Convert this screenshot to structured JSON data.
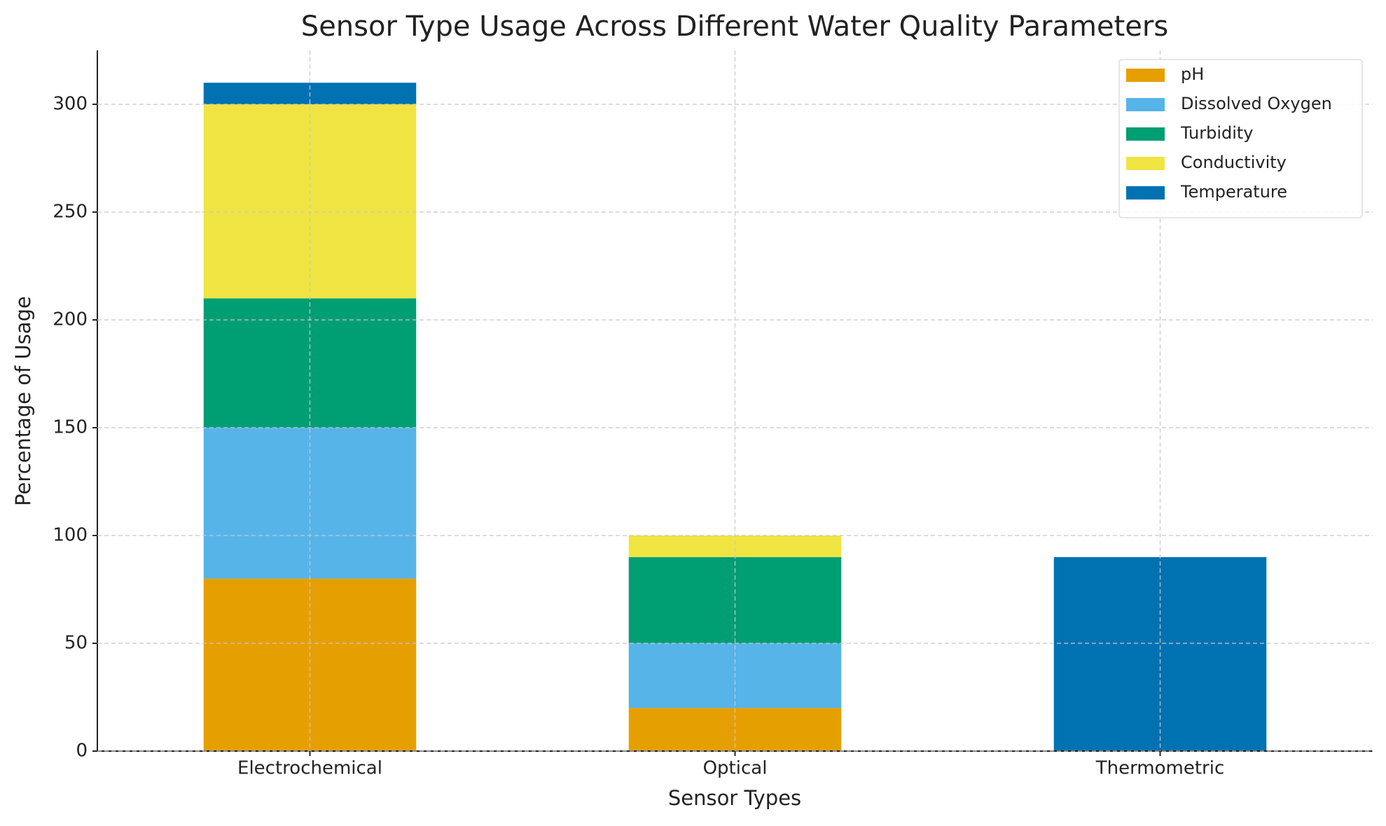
{
  "chart_data": {
    "type": "stacked_bar",
    "title": "Sensor Type Usage Across Different Water Quality Parameters",
    "x_label": "Sensor Types",
    "y_label": "Percentage of Usage",
    "categories": [
      "Electrochemical",
      "Optical",
      "Thermometric"
    ],
    "series": [
      {
        "name": "pH",
        "color": "#E69F00",
        "values": [
          80,
          20,
          0
        ]
      },
      {
        "name": "Dissolved Oxygen",
        "color": "#56B4E9",
        "values": [
          70,
          30,
          0
        ]
      },
      {
        "name": "Turbidity",
        "color": "#009E73",
        "values": [
          60,
          40,
          0
        ]
      },
      {
        "name": "Conductivity",
        "color": "#F0E442",
        "values": [
          90,
          10,
          0
        ]
      },
      {
        "name": "Temperature",
        "color": "#0072B2",
        "values": [
          10,
          0,
          90
        ]
      }
    ],
    "ylim": [
      0,
      325
    ],
    "yticks": [
      0,
      50,
      100,
      150,
      200,
      250,
      300
    ],
    "grid": true,
    "legend": "upper right"
  }
}
